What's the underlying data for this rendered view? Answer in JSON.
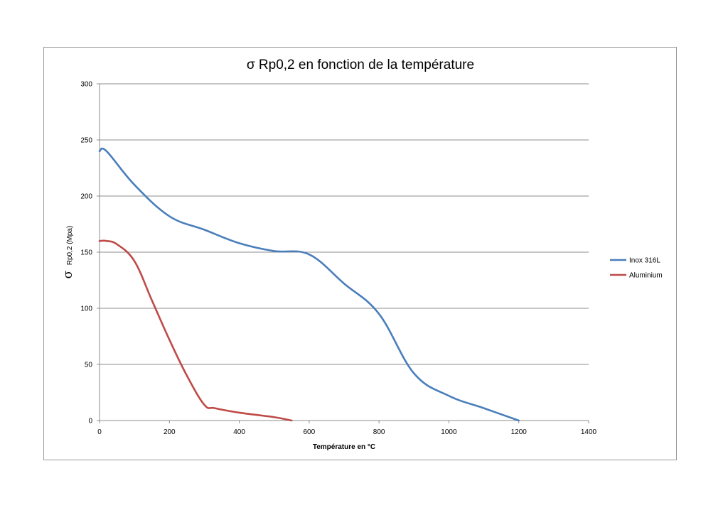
{
  "chart_data": {
    "type": "line",
    "title": "σ Rp0,2 en fonction de la température",
    "xlabel": "Température en °C",
    "ylabel_symbol": "σ",
    "ylabel_rest": "Rp0,2 (Mpa)",
    "xlim": [
      0,
      1400
    ],
    "ylim": [
      0,
      300
    ],
    "xticks": [
      0,
      200,
      400,
      600,
      800,
      1000,
      1200,
      1400
    ],
    "yticks": [
      0,
      50,
      100,
      150,
      200,
      250,
      300
    ],
    "grid": "horizontal",
    "legend_position": "right",
    "series": [
      {
        "name": "Inox 316L",
        "color": "#4a7ebb",
        "points": [
          [
            0,
            240
          ],
          [
            20,
            240
          ],
          [
            100,
            210
          ],
          [
            200,
            182
          ],
          [
            300,
            170
          ],
          [
            400,
            158
          ],
          [
            500,
            151
          ],
          [
            600,
            148
          ],
          [
            700,
            122
          ],
          [
            800,
            95
          ],
          [
            900,
            42
          ],
          [
            1000,
            22
          ],
          [
            1100,
            11
          ],
          [
            1200,
            0
          ]
        ]
      },
      {
        "name": "Aluminium",
        "color": "#be4b48",
        "points": [
          [
            0,
            160
          ],
          [
            20,
            160
          ],
          [
            50,
            157
          ],
          [
            100,
            142
          ],
          [
            150,
            107
          ],
          [
            200,
            72
          ],
          [
            250,
            40
          ],
          [
            300,
            14
          ],
          [
            330,
            11
          ],
          [
            400,
            7
          ],
          [
            500,
            3
          ],
          [
            550,
            0
          ]
        ]
      }
    ]
  }
}
